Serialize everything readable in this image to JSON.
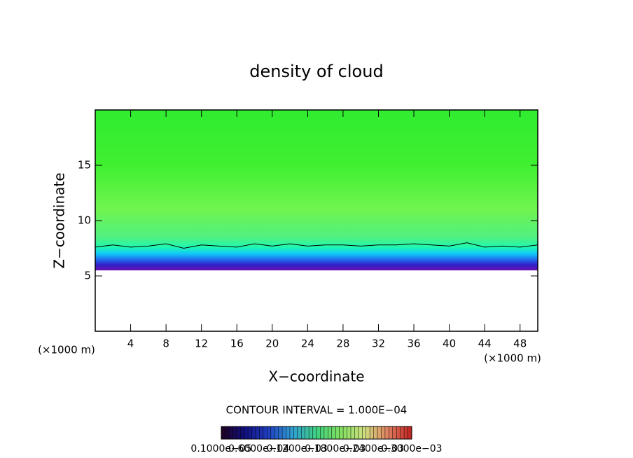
{
  "chart_data": {
    "type": "contour",
    "title": "density of cloud",
    "xlabel": "X−coordinate",
    "ylabel": "Z−coordinate",
    "x_unit_label": "(×1000 m)",
    "y_unit_label": "(×1000 m)",
    "xlim": [
      0,
      50
    ],
    "xticks": [
      4,
      8,
      12,
      16,
      20,
      24,
      28,
      32,
      36,
      40,
      44,
      48
    ],
    "ylim": [
      0,
      20
    ],
    "yticks": [
      5,
      10,
      15
    ],
    "field": {
      "z": [
        5.5,
        6.0,
        6.5,
        7.0,
        7.6,
        8.5,
        11,
        15,
        20
      ],
      "colors": [
        "#6a10b0",
        "#3020c8",
        "#2070f0",
        "#10c8f8",
        "#20f8b0",
        "#50f080",
        "#70f450",
        "#40f030",
        "#30ec30"
      ]
    },
    "contour": {
      "color": "#000000",
      "x": [
        0,
        2,
        4,
        6,
        8,
        10,
        12,
        14,
        16,
        18,
        20,
        22,
        24,
        26,
        28,
        30,
        32,
        34,
        36,
        38,
        40,
        42,
        44,
        46,
        48,
        50
      ],
      "y": [
        7.6,
        7.8,
        7.6,
        7.7,
        7.9,
        7.5,
        7.8,
        7.7,
        7.6,
        7.9,
        7.7,
        7.9,
        7.7,
        7.8,
        7.8,
        7.7,
        7.8,
        7.8,
        7.9,
        7.8,
        7.7,
        8.0,
        7.6,
        7.7,
        7.6,
        7.8
      ]
    },
    "annotation": "CONTOUR INTERVAL = 1.000E−04",
    "colorbar": {
      "colors": [
        "#200020",
        "#101080",
        "#2040c0",
        "#30a0d0",
        "#40d080",
        "#80e060",
        "#d0e080",
        "#e08060",
        "#c02020"
      ],
      "clim": [
        1e-06,
        0.0003
      ],
      "ticks": [
        {
          "value": 1e-06,
          "label": "0.1000e−05"
        },
        {
          "value": 6e-05,
          "label": "0.6000e−04"
        },
        {
          "value": 0.00012,
          "label": "0.1200e−03"
        },
        {
          "value": 0.00018,
          "label": "0.1800e−03"
        },
        {
          "value": 0.00024,
          "label": "0.2400e−03"
        },
        {
          "value": 0.0003,
          "label": "0.3000e−03"
        }
      ]
    }
  }
}
